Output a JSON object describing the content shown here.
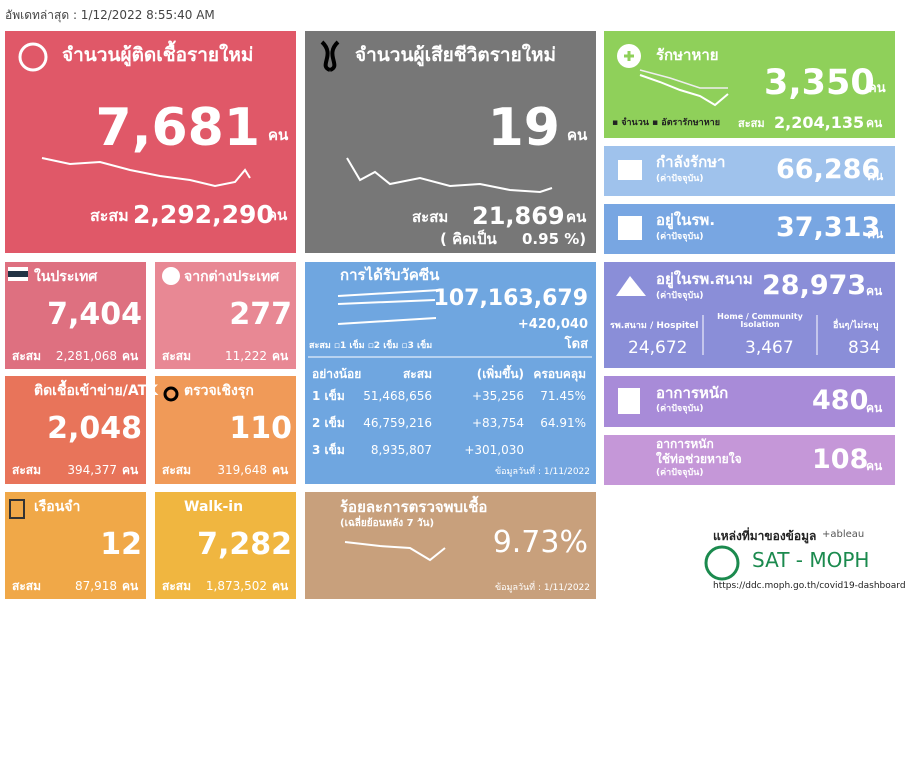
{
  "header": {
    "updated": "อัพเดทล่าสุด : 1/12/2022 8:55:40 AM"
  },
  "new_cases": {
    "title": "จำนวนผู้ติดเชื้อรายใหม่",
    "value": "7,681",
    "unit": "คน",
    "total_label": "สะสม",
    "total": "2,292,290",
    "total_unit": "คน"
  },
  "new_deaths": {
    "title": "จำนวนผู้เสียชีวิตรายใหม่",
    "value": "19",
    "unit": "คน",
    "total_label": "สะสม",
    "total": "21,869",
    "total_unit": "คน",
    "rate_label": "( คิดเป็น",
    "rate": "0.95 %)"
  },
  "recovered": {
    "title": "รักษาหาย",
    "value": "3,350",
    "unit": "คน",
    "legend": [
      "จำนวน",
      "อัตรารักษาหาย"
    ],
    "total_label": "สะสม",
    "total": "2,204,135",
    "total_unit": "คน"
  },
  "treating": {
    "title": "กำลังรักษา",
    "note": "(ค่าปัจจุบัน)",
    "value": "66,286",
    "unit": "คน"
  },
  "hospital": {
    "title": "อยู่ในรพ.",
    "note": "(ค่าปัจจุบัน)",
    "value": "37,313",
    "unit": "คน"
  },
  "field_hospital": {
    "title": "อยู่ในรพ.สนาม",
    "note": "(ค่าปัจจุบัน)",
    "value": "28,973",
    "unit": "คน",
    "parts": [
      {
        "label": "รพ.สนาม / Hospitel",
        "value": "24,672"
      },
      {
        "label": "Home / Community Isolation",
        "value": "3,467"
      },
      {
        "label": "อื่นๆ/ไม่ระบุ",
        "value": "834"
      }
    ]
  },
  "severe": {
    "title": "อาการหนัก",
    "note": "(ค่าปัจจุบัน)",
    "value": "480",
    "unit": "คน"
  },
  "ventilator": {
    "title": "อาการหนัก",
    "subtitle": "ใช้ท่อช่วยหายใจ",
    "note": "(ค่าปัจจุบัน)",
    "value": "108",
    "unit": "คน"
  },
  "small_tiles": [
    {
      "title": "ในประเทศ",
      "value": "7,404",
      "total_label": "สะสม",
      "total": "2,281,068",
      "unit": "คน"
    },
    {
      "title": "จากต่างประเทศ",
      "value": "277",
      "total_label": "สะสม",
      "total": "11,222",
      "unit": "คน"
    },
    {
      "title": "ติดเชื้อเข้าข่าย/ATK",
      "value": "2,048",
      "total_label": "สะสม",
      "total": "394,377",
      "unit": "คน"
    },
    {
      "title": "ตรวจเชิงรุก",
      "value": "110",
      "total_label": "สะสม",
      "total": "319,648",
      "unit": "คน"
    },
    {
      "title": "เรือนจำ",
      "value": "12",
      "total_label": "สะสม",
      "total": "87,918",
      "unit": "คน"
    },
    {
      "title": "Walk-in",
      "value": "7,282",
      "total_label": "สะสม",
      "total": "1,873,502",
      "unit": "คน"
    }
  ],
  "vaccine": {
    "title": "การได้รับวัคซีน",
    "total": "107,163,679",
    "increase": "+420,040",
    "unit": "โดส",
    "legend": [
      "สะสม",
      "1 เข็ม",
      "2 เข็ม",
      "3 เข็ม"
    ],
    "table": {
      "header": [
        "อย่างน้อย",
        "สะสม",
        "(เพิ่มขึ้น)",
        "ครอบคลุม"
      ],
      "rows": [
        [
          "1 เข็ม",
          "51,468,656",
          "+35,256",
          "71.45%"
        ],
        [
          "2 เข็ม",
          "46,759,216",
          "+83,754",
          "64.91%"
        ],
        [
          "3 เข็ม",
          "8,935,807",
          "+301,030"
        ]
      ]
    },
    "date": "ข้อมูลวันที่ : 1/11/2022"
  },
  "positivity": {
    "title": "ร้อยละการตรวจพบเชื้อ",
    "subtitle": "(เฉลี่ยย้อนหลัง 7 วัน)",
    "value": "9.73%",
    "date": "ข้อมูลวันที่ : 1/11/2022"
  },
  "source": {
    "label": "แหล่งที่มาของข้อมูล",
    "tableau": "+ableau",
    "name": "SAT - MOPH",
    "url": "https://ddc.moph.go.th/covid19-dashboard"
  }
}
